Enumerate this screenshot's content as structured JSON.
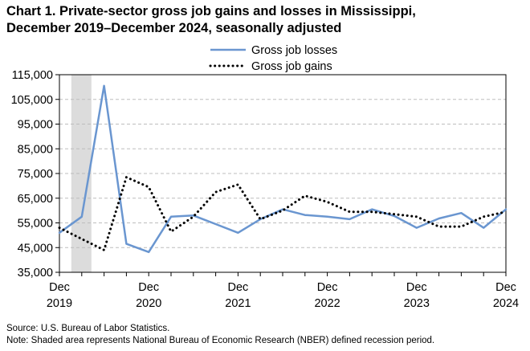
{
  "chart_data": {
    "type": "line",
    "title_line1": "Chart 1. Private-sector gross job gains and losses in Mississippi,",
    "title_line2": "December 2019–December 2024, seasonally adjusted",
    "y_ticks": [
      "115,000",
      "105,000",
      "95,000",
      "85,000",
      "75,000",
      "65,000",
      "55,000",
      "45,000",
      "35,000"
    ],
    "x_ticks": [
      {
        "month": "Dec",
        "year": "2019"
      },
      {
        "month": "Dec",
        "year": "2020"
      },
      {
        "month": "Dec",
        "year": "2021"
      },
      {
        "month": "Dec",
        "year": "2022"
      },
      {
        "month": "Dec",
        "year": "2023"
      },
      {
        "month": "Dec",
        "year": "2024"
      }
    ],
    "ylim": [
      35000,
      115000
    ],
    "grid": "horizontal dashed",
    "legend_position": "top-center",
    "recession_shading": {
      "start_quarter_index": 1,
      "end_quarter_index": 2,
      "color": "#dcdcdc"
    },
    "x_quarters": [
      "Dec 2019",
      "Mar 2020",
      "Jun 2020",
      "Sep 2020",
      "Dec 2020",
      "Mar 2021",
      "Jun 2021",
      "Sep 2021",
      "Dec 2021",
      "Mar 2022",
      "Jun 2022",
      "Sep 2022",
      "Dec 2022",
      "Mar 2023",
      "Jun 2023",
      "Sep 2023",
      "Dec 2023",
      "Mar 2024",
      "Jun 2024",
      "Sep 2024",
      "Dec 2024"
    ],
    "series": [
      {
        "name": "Gross job losses",
        "color": "#6a96d0",
        "style": "solid",
        "values": [
          51000,
          57500,
          110500,
          46500,
          43200,
          57500,
          58000,
          54500,
          51000,
          56500,
          60500,
          58200,
          57500,
          56500,
          60500,
          57800,
          53000,
          56800,
          59000,
          53000,
          60500
        ]
      },
      {
        "name": "Gross job gains",
        "color": "#000000",
        "style": "dotted",
        "values": [
          53000,
          48500,
          44000,
          73500,
          69500,
          51500,
          57500,
          67500,
          70500,
          56500,
          60000,
          66000,
          63500,
          59500,
          59500,
          58500,
          57500,
          53500,
          53500,
          57500,
          59500
        ]
      }
    ]
  },
  "footnotes": {
    "source": "Source: U.S. Bureau of Labor Statistics.",
    "note": "Note: Shaded area represents National Bureau of Economic Research (NBER) defined  recession period."
  }
}
